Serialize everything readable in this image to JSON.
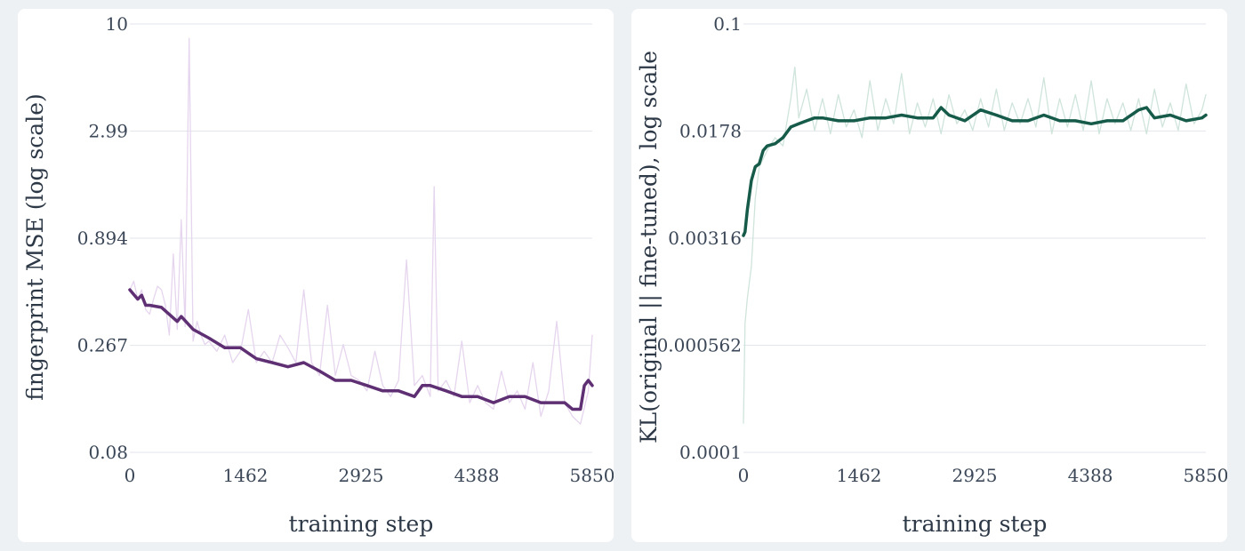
{
  "chart_data": [
    {
      "type": "line",
      "title": "",
      "xlabel": "training step",
      "ylabel": "fingerprint MSE (log scale)",
      "xlim": [
        0,
        5850
      ],
      "ylim": [
        0.08,
        10
      ],
      "yscale": "log",
      "xticks": [
        0,
        1462,
        2925,
        4388,
        5850
      ],
      "xtick_labels": [
        "0",
        "1462",
        "2925",
        "4388",
        "5850"
      ],
      "yticks": [
        0.08,
        0.267,
        0.894,
        2.99,
        10
      ],
      "ytick_labels": [
        "0.08",
        "0.267",
        "0.894",
        "2.99",
        "10"
      ],
      "grid": true,
      "colors": {
        "raw": "#e6d5ee",
        "smoothed": "#5e2f72"
      },
      "series": [
        {
          "style": "raw",
          "x": [
            0,
            50,
            100,
            150,
            200,
            250,
            300,
            350,
            400,
            450,
            500,
            550,
            600,
            650,
            700,
            750,
            800,
            850,
            900,
            950,
            1000,
            1100,
            1200,
            1300,
            1400,
            1500,
            1600,
            1700,
            1800,
            1900,
            2000,
            2100,
            2200,
            2300,
            2400,
            2500,
            2600,
            2700,
            2800,
            2900,
            3000,
            3100,
            3200,
            3300,
            3400,
            3500,
            3600,
            3700,
            3800,
            3850,
            3900,
            4000,
            4100,
            4200,
            4300,
            4400,
            4500,
            4600,
            4700,
            4800,
            4900,
            5000,
            5100,
            5200,
            5300,
            5400,
            5500,
            5600,
            5700,
            5800,
            5850
          ],
          "values": [
            0.5,
            0.55,
            0.45,
            0.5,
            0.4,
            0.38,
            0.45,
            0.52,
            0.5,
            0.42,
            0.3,
            0.75,
            0.32,
            1.1,
            0.33,
            8.5,
            0.28,
            0.35,
            0.3,
            0.27,
            0.28,
            0.25,
            0.3,
            0.22,
            0.25,
            0.4,
            0.22,
            0.25,
            0.22,
            0.3,
            0.26,
            0.22,
            0.5,
            0.22,
            0.19,
            0.42,
            0.19,
            0.27,
            0.19,
            0.18,
            0.16,
            0.25,
            0.17,
            0.15,
            0.18,
            0.7,
            0.17,
            0.19,
            0.15,
            1.6,
            0.16,
            0.18,
            0.15,
            0.28,
            0.14,
            0.17,
            0.14,
            0.13,
            0.2,
            0.14,
            0.16,
            0.13,
            0.22,
            0.12,
            0.16,
            0.35,
            0.14,
            0.12,
            0.11,
            0.16,
            0.3
          ]
        },
        {
          "style": "smoothed",
          "x": [
            0,
            100,
            150,
            200,
            250,
            400,
            600,
            650,
            800,
            1000,
            1200,
            1400,
            1600,
            1800,
            2000,
            2200,
            2400,
            2600,
            2800,
            3000,
            3200,
            3400,
            3600,
            3700,
            3800,
            4000,
            4200,
            4400,
            4600,
            4800,
            5000,
            5200,
            5400,
            5500,
            5600,
            5700,
            5750,
            5800,
            5850
          ],
          "values": [
            0.5,
            0.45,
            0.47,
            0.42,
            0.42,
            0.41,
            0.35,
            0.37,
            0.32,
            0.29,
            0.26,
            0.26,
            0.23,
            0.22,
            0.21,
            0.22,
            0.2,
            0.18,
            0.18,
            0.17,
            0.16,
            0.16,
            0.15,
            0.17,
            0.17,
            0.16,
            0.15,
            0.15,
            0.14,
            0.15,
            0.15,
            0.14,
            0.14,
            0.14,
            0.13,
            0.13,
            0.17,
            0.18,
            0.17
          ]
        }
      ]
    },
    {
      "type": "line",
      "title": "",
      "xlabel": "training step",
      "ylabel": "KL(original || fine-tuned), log scale",
      "xlim": [
        0,
        5850
      ],
      "ylim": [
        0.0001,
        0.1
      ],
      "yscale": "log",
      "xticks": [
        0,
        1462,
        2925,
        4388,
        5850
      ],
      "xtick_labels": [
        "0",
        "1462",
        "2925",
        "4388",
        "5850"
      ],
      "yticks": [
        0.0001,
        0.000562,
        0.00316,
        0.0178,
        0.1
      ],
      "ytick_labels": [
        "0.0001",
        "0.000562",
        "0.00316",
        "0.0178",
        "0.1"
      ],
      "grid": true,
      "colors": {
        "raw": "#cfe4db",
        "smoothed": "#165b49"
      },
      "series": [
        {
          "style": "raw",
          "x": [
            0,
            20,
            50,
            100,
            150,
            200,
            300,
            400,
            500,
            600,
            650,
            700,
            800,
            900,
            1000,
            1100,
            1200,
            1300,
            1400,
            1500,
            1600,
            1700,
            1800,
            1900,
            2000,
            2100,
            2200,
            2300,
            2400,
            2500,
            2600,
            2700,
            2800,
            2900,
            3000,
            3100,
            3200,
            3300,
            3400,
            3500,
            3600,
            3700,
            3800,
            3900,
            4000,
            4100,
            4200,
            4300,
            4400,
            4500,
            4600,
            4700,
            4800,
            4900,
            5000,
            5100,
            5200,
            5300,
            5400,
            5500,
            5600,
            5700,
            5800,
            5850
          ],
          "values": [
            0.00016,
            0.0008,
            0.0012,
            0.002,
            0.006,
            0.01,
            0.013,
            0.016,
            0.014,
            0.03,
            0.05,
            0.022,
            0.035,
            0.018,
            0.03,
            0.017,
            0.032,
            0.019,
            0.025,
            0.016,
            0.04,
            0.018,
            0.03,
            0.02,
            0.045,
            0.017,
            0.028,
            0.019,
            0.03,
            0.017,
            0.032,
            0.02,
            0.025,
            0.018,
            0.03,
            0.019,
            0.035,
            0.018,
            0.028,
            0.02,
            0.03,
            0.019,
            0.042,
            0.017,
            0.03,
            0.019,
            0.032,
            0.018,
            0.04,
            0.017,
            0.03,
            0.02,
            0.028,
            0.018,
            0.03,
            0.017,
            0.035,
            0.019,
            0.028,
            0.018,
            0.038,
            0.02,
            0.025,
            0.032
          ]
        },
        {
          "style": "smoothed",
          "x": [
            0,
            20,
            50,
            100,
            150,
            200,
            250,
            300,
            400,
            500,
            600,
            700,
            800,
            900,
            1000,
            1200,
            1400,
            1600,
            1800,
            2000,
            2200,
            2400,
            2500,
            2600,
            2800,
            3000,
            3200,
            3400,
            3600,
            3800,
            4000,
            4200,
            4400,
            4600,
            4800,
            5000,
            5100,
            5200,
            5400,
            5600,
            5800,
            5850
          ],
          "values": [
            0.0033,
            0.0035,
            0.005,
            0.008,
            0.01,
            0.0105,
            0.013,
            0.014,
            0.0145,
            0.016,
            0.019,
            0.02,
            0.021,
            0.022,
            0.022,
            0.021,
            0.021,
            0.022,
            0.022,
            0.023,
            0.022,
            0.022,
            0.026,
            0.023,
            0.021,
            0.025,
            0.023,
            0.021,
            0.021,
            0.023,
            0.021,
            0.021,
            0.02,
            0.021,
            0.021,
            0.025,
            0.026,
            0.022,
            0.023,
            0.021,
            0.022,
            0.023
          ]
        }
      ]
    }
  ]
}
